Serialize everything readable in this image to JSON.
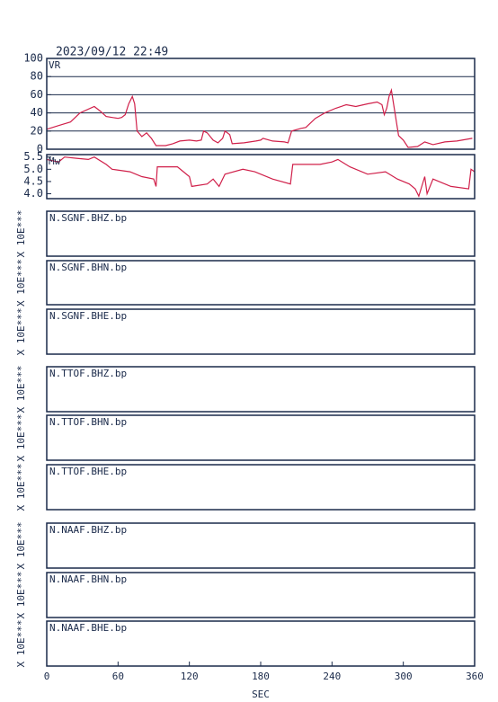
{
  "timestamp": "2023/09/12 22:49",
  "chart_data": [
    {
      "type": "line",
      "title": "VR",
      "color": "#d0204a",
      "x": [
        0,
        10,
        20,
        28,
        40,
        45,
        50,
        60,
        63,
        66,
        69,
        72,
        74,
        76,
        80,
        84,
        88,
        92,
        100,
        106,
        112,
        120,
        126,
        130,
        132,
        135,
        140,
        144,
        148,
        150,
        154,
        156,
        166,
        176,
        180,
        182,
        190,
        200,
        203,
        206,
        214,
        218,
        226,
        234,
        243,
        252,
        260,
        270,
        278,
        282,
        284,
        286,
        288,
        290,
        293,
        296,
        300,
        304,
        312,
        318,
        325,
        335,
        345,
        358
      ],
      "values": [
        22,
        26,
        30,
        40,
        47,
        42,
        36,
        34,
        35,
        38,
        50,
        58,
        50,
        20,
        14,
        18,
        12,
        4,
        4,
        6,
        9,
        10,
        9,
        10,
        20,
        18,
        10,
        7,
        12,
        20,
        16,
        6,
        7,
        9,
        10,
        12,
        9,
        8,
        7,
        20,
        23,
        24,
        34,
        40,
        45,
        49,
        47,
        50,
        52,
        49,
        38,
        45,
        58,
        65,
        40,
        15,
        10,
        2,
        3,
        8,
        5,
        8,
        9,
        12
      ],
      "xlim": [
        0,
        360
      ],
      "ylim": [
        0,
        100
      ],
      "yticks": [
        0,
        20,
        40,
        60,
        80,
        100
      ],
      "grid": true
    },
    {
      "type": "line",
      "title": "Mw",
      "color": "#d0204a",
      "x": [
        0,
        10,
        15,
        25,
        35,
        40,
        50,
        55,
        70,
        80,
        90,
        92,
        93,
        110,
        120,
        122,
        135,
        140,
        145,
        150,
        165,
        175,
        190,
        205,
        207,
        230,
        240,
        245,
        255,
        270,
        285,
        295,
        305,
        310,
        313,
        318,
        320,
        325,
        340,
        355,
        357,
        360
      ],
      "values": [
        5.4,
        5.3,
        5.5,
        5.45,
        5.4,
        5.5,
        5.2,
        5.0,
        4.9,
        4.7,
        4.6,
        4.3,
        5.1,
        5.1,
        4.7,
        4.3,
        4.4,
        4.6,
        4.3,
        4.8,
        5.0,
        4.9,
        4.6,
        4.4,
        5.2,
        5.2,
        5.3,
        5.4,
        5.1,
        4.8,
        4.9,
        4.6,
        4.4,
        4.2,
        3.9,
        4.7,
        4.0,
        4.6,
        4.3,
        4.2,
        5.0,
        4.9
      ],
      "xlim": [
        0,
        360
      ],
      "ylim": [
        3.8,
        5.6
      ],
      "yticks": [
        {
          "value": 4,
          "label": "4.0"
        },
        4.5,
        {
          "value": 5,
          "label": "5.0"
        },
        5.5
      ],
      "grid": false
    }
  ],
  "x_axis": {
    "xlim": [
      0,
      360
    ],
    "xticks": [
      0,
      60,
      120,
      180,
      240,
      300,
      360
    ],
    "label": "SEC"
  },
  "panels": {
    "y_label": "X 10E***",
    "labels": [
      "N.SGNF.BHZ.bp",
      "N.SGNF.BHN.bp",
      "N.SGNF.BHE.bp",
      "N.TTOF.BHZ.bp",
      "N.TTOF.BHN.bp",
      "N.TTOF.BHE.bp",
      "N.NAAF.BHZ.bp",
      "N.NAAF.BHN.bp",
      "N.NAAF.BHE.bp"
    ]
  }
}
